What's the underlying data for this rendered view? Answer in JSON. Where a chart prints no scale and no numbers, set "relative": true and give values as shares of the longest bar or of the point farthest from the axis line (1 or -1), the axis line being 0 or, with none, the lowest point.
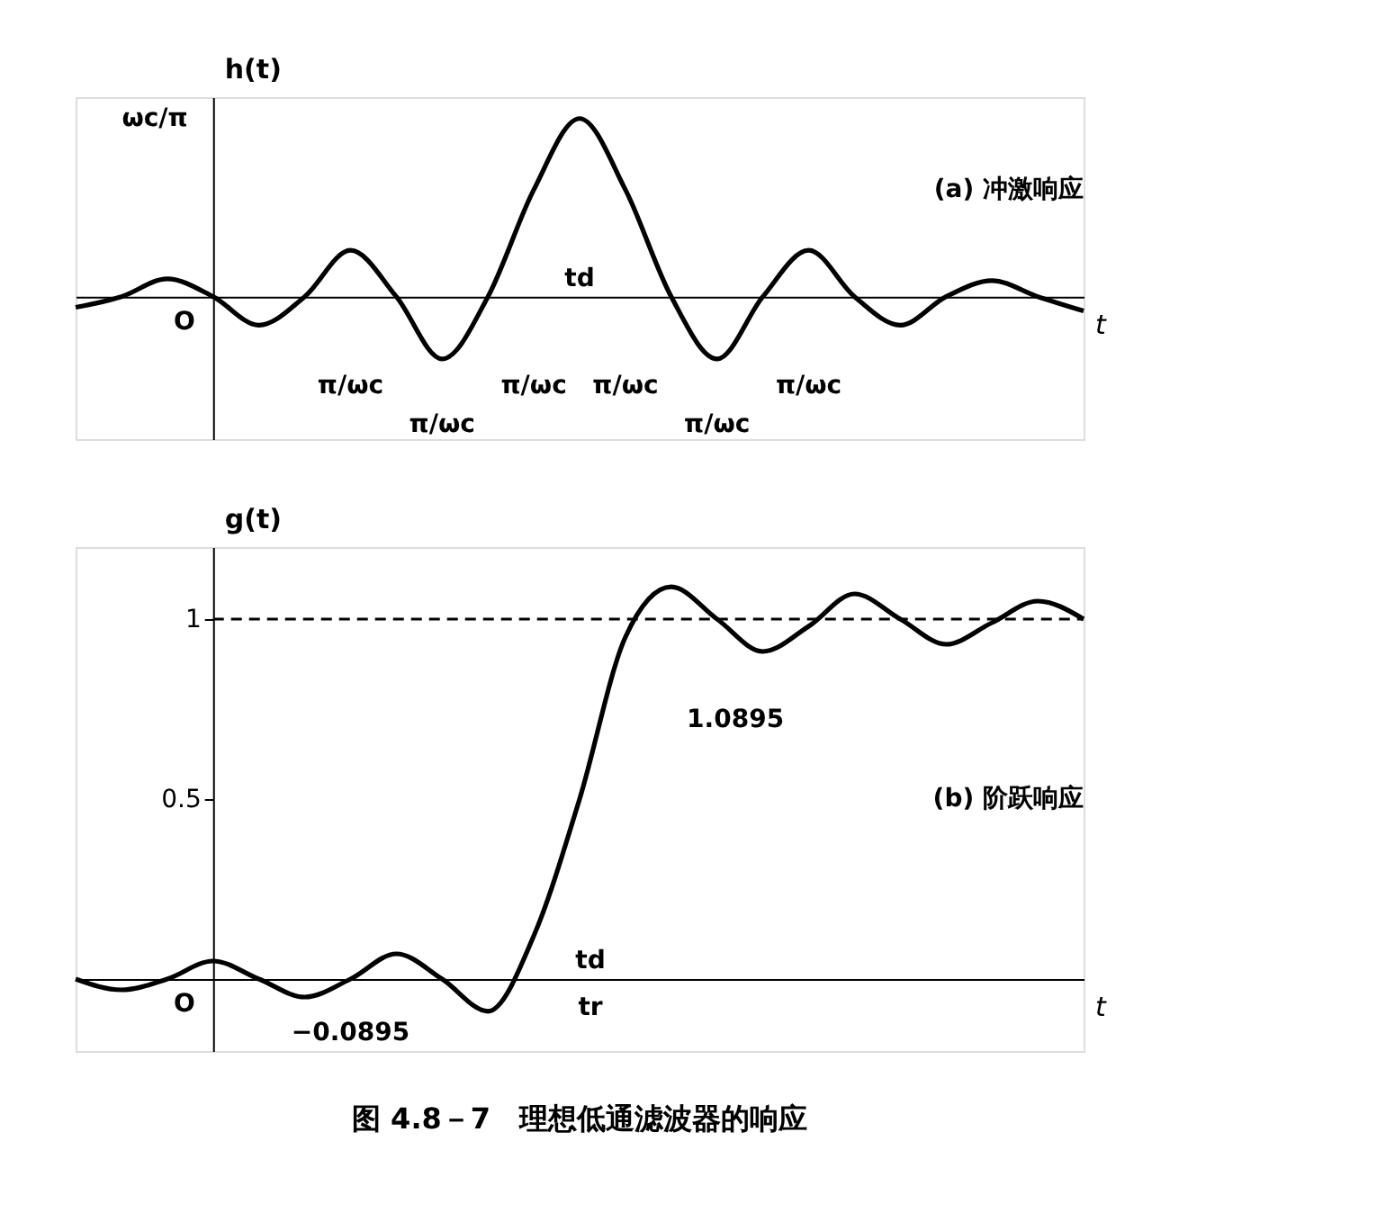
{
  "chart_data": [
    {
      "type": "line",
      "relative": true,
      "ylabel": "h(t)",
      "xlabel": "t",
      "grid": false,
      "marker": "none",
      "categories": [
        null,
        null,
        null,
        null,
        null,
        null,
        null,
        null,
        null,
        null,
        null,
        null,
        null,
        null,
        null,
        null,
        null,
        null,
        null,
        null,
        null,
        null,
        null
      ],
      "series": [
        {
          "color": "#000000",
          "values": [
            -0.06,
            0,
            0.1,
            0,
            -0.16,
            0,
            0.26,
            0,
            -0.35,
            0,
            0.6,
            1,
            0.6,
            0,
            -0.35,
            0,
            0.26,
            0,
            -0.16,
            0,
            0.09,
            0,
            -0.08
          ]
        }
      ],
      "annotations": [
        "ωc/π",
        "O",
        "td",
        "(a) 冲激响应",
        "π/ωc",
        "π/ωc",
        "π/ωc",
        "π/ωc",
        "π/ωc",
        "π/ωc"
      ]
    },
    {
      "type": "line",
      "ylabel": "g(t)",
      "xlabel": "t",
      "grid": false,
      "marker": "none",
      "categories": [
        null,
        null,
        null,
        null,
        null,
        null,
        null,
        null,
        null,
        null,
        null,
        null,
        null,
        null,
        null,
        null,
        null,
        null,
        null,
        null,
        null,
        null,
        null
      ],
      "series": [
        {
          "color": "#000000",
          "values": [
            0,
            -0.03,
            0,
            0.05,
            0,
            -0.05,
            0,
            0.07,
            0,
            -0.0895,
            0.12,
            0.5,
            0.95,
            1.0895,
            1.0,
            0.91,
            0.98,
            1.07,
            1.0,
            0.93,
            0.99,
            1.05,
            1.0
          ]
        }
      ],
      "ylim": [
        -0.2,
        1.2
      ],
      "yticks": [
        0.5,
        1
      ],
      "ref_lines": [
        {
          "axis": "y",
          "value": 1,
          "line_style": "dashed"
        }
      ],
      "annotations": [
        "O",
        "td",
        "tr",
        "1.0895",
        "−0.0895",
        "(b) 阶跃响应"
      ],
      "title": "图 4.8－7　理想低通滤波器的响应"
    }
  ]
}
